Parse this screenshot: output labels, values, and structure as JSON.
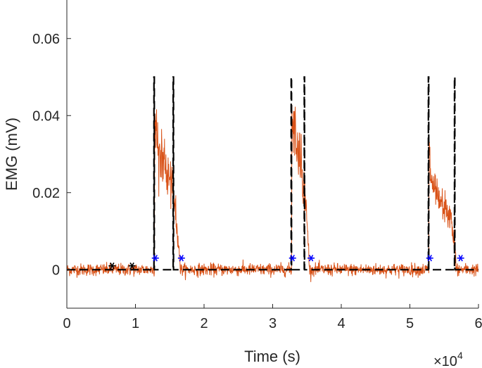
{
  "chart_data": {
    "type": "line",
    "title": "",
    "xlabel": "Time (s)",
    "ylabel": "EMG (mV)",
    "x_exponent_label": {
      "base": "×10",
      "exp": "4"
    },
    "xlim": [
      0,
      60000
    ],
    "ylim": [
      -0.01,
      0.07
    ],
    "x_ticks": [
      0,
      10000,
      20000,
      30000,
      40000,
      50000,
      60000
    ],
    "x_tick_labels": [
      "0",
      "1",
      "2",
      "3",
      "4",
      "5",
      "6"
    ],
    "y_ticks": [
      0,
      0.02,
      0.04,
      0.06
    ],
    "y_tick_labels": [
      "0",
      "0.02",
      "0.04",
      "0.06"
    ],
    "grid": false,
    "colors": {
      "signal": "#d95319",
      "threshold": "#000000",
      "onset_marker": "#0000ff",
      "calib_marker": "#000000",
      "axes": "#262626"
    },
    "series": [
      {
        "style": "signal",
        "baseline_noise_sd": 0.0008,
        "active_segments": [
          {
            "x": [
              12800,
              13200,
              14000,
              15000,
              15800,
              16200,
              16500
            ],
            "y": [
              0.04,
              0.032,
              0.028,
              0.023,
              0.016,
              0.008,
              0.002
            ]
          },
          {
            "x": [
              32800,
              33200,
              34000,
              34800,
              35300
            ],
            "y": [
              0.04,
              0.036,
              0.03,
              0.018,
              0.004
            ]
          },
          {
            "x": [
              52800,
              53200,
              54000,
              55000,
              56000,
              56700
            ],
            "y": [
              0.03,
              0.022,
              0.018,
              0.016,
              0.013,
              0.004
            ]
          }
        ]
      },
      {
        "style": "threshold",
        "x": [
          0,
          12700,
          12700,
          12750,
          12750,
          15500,
          15500,
          15550,
          15550,
          32700,
          32700,
          32750,
          32750,
          34600,
          34600,
          34650,
          34650,
          52700,
          52700,
          52750,
          52750,
          56500,
          56500,
          56550,
          56550,
          60000
        ],
        "y": [
          0,
          0,
          0.05,
          0.05,
          0,
          0,
          0.05,
          0.05,
          0,
          0,
          0.05,
          0.05,
          0,
          0,
          0.05,
          0.05,
          0,
          0,
          0.05,
          0.05,
          0,
          0,
          0.05,
          0.05,
          0,
          0
        ]
      },
      {
        "style": "onset_marker",
        "x": [
          12900,
          16700,
          32900,
          35600,
          52900,
          57400
        ],
        "y": [
          0.003,
          0.003,
          0.003,
          0.003,
          0.003,
          0.003
        ]
      },
      {
        "style": "calib_marker",
        "x": [
          6600,
          9500
        ],
        "y": [
          0.001,
          0.001
        ]
      }
    ]
  }
}
